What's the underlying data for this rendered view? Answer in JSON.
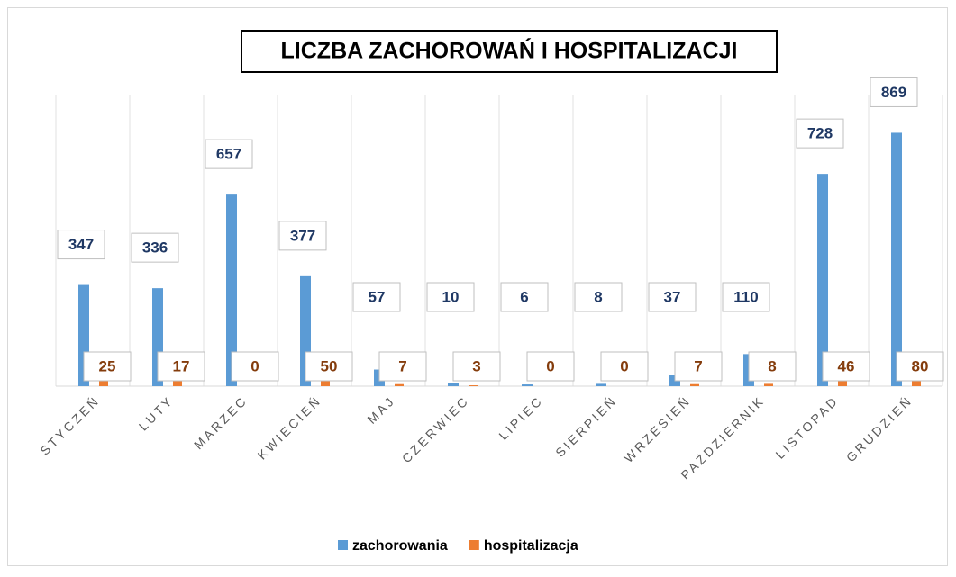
{
  "chart_data": {
    "type": "bar",
    "title": "LICZBA  ZACHOROWAŃ I HOSPITALIZACJI",
    "categories": [
      "STYCZEŃ",
      "LUTY",
      "MARZEC",
      "KWIECIEŃ",
      "MAJ",
      "CZERWIEC",
      "LIPIEC",
      "SIERPIEŃ",
      "WRZESIEŃ",
      "PAŹDZIERNIK",
      "LISTOPAD",
      "GRUDZIEŃ"
    ],
    "series": [
      {
        "name": "zachorowania",
        "color": "#5b9bd5",
        "values": [
          347,
          336,
          657,
          377,
          57,
          10,
          6,
          8,
          37,
          110,
          728,
          869
        ]
      },
      {
        "name": "hospitalizacja",
        "color": "#ed7d31",
        "values": [
          25,
          17,
          0,
          50,
          7,
          3,
          0,
          0,
          7,
          8,
          46,
          80
        ]
      }
    ],
    "ylim": [
      0,
      1000
    ],
    "grid": true,
    "legend": "bottom"
  }
}
